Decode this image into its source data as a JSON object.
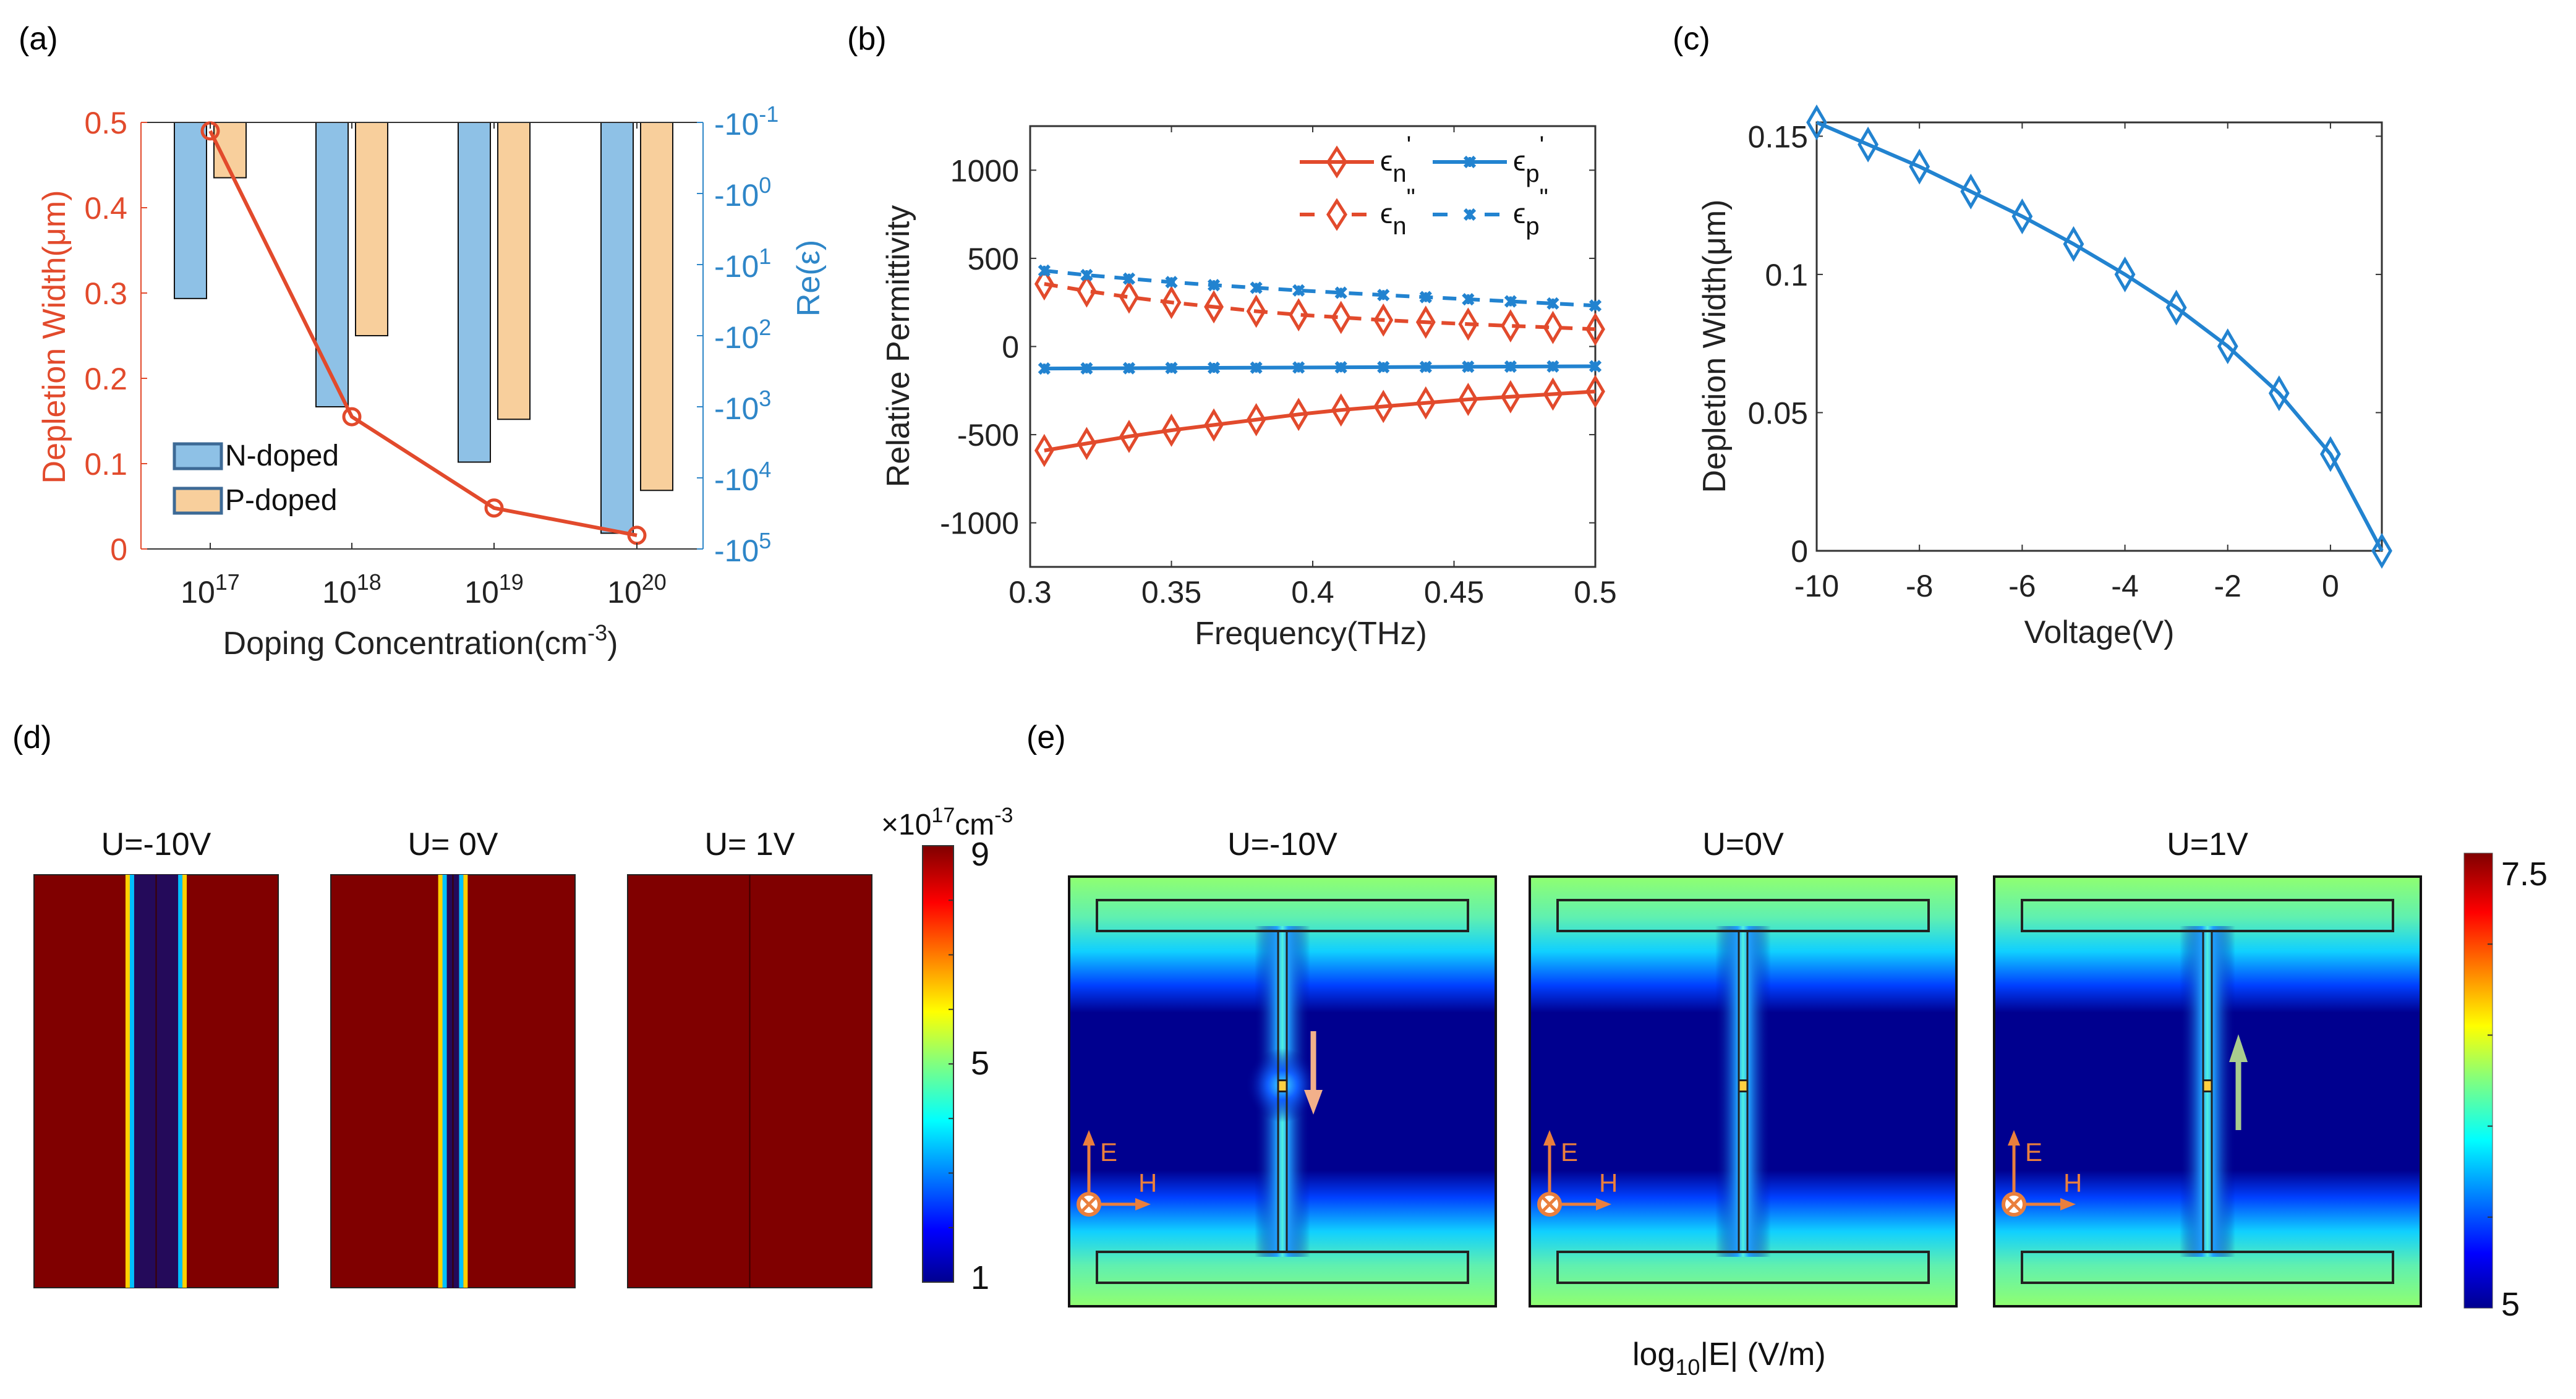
{
  "panel_labels": [
    "(a)",
    "(b)",
    "(c)",
    "(d)",
    "(e)"
  ],
  "chart_data": [
    {
      "id": "a",
      "type": "bar",
      "title": "",
      "xlabel": "Doping Concentration(cm-3)",
      "xlabel_main": "Doping Concentration(cm",
      "xlabel_sup": "-3",
      "xlabel_end": ")",
      "ylabel": "Depletion Width(μm)",
      "ylabel_right": "Re(ε)",
      "categories": [
        {
          "base": "10",
          "exp": "17"
        },
        {
          "base": "10",
          "exp": "18"
        },
        {
          "base": "10",
          "exp": "19"
        },
        {
          "base": "10",
          "exp": "20"
        }
      ],
      "ylim": [
        0,
        0.5
      ],
      "yticks": [
        "0",
        "0.1",
        "0.2",
        "0.3",
        "0.4",
        "0.5"
      ],
      "ylim_right_log10_magnitude": [
        -1,
        5
      ],
      "yticks_right": [
        {
          "base": "-10",
          "exp": "-1"
        },
        {
          "base": "-10",
          "exp": "0"
        },
        {
          "base": "-10",
          "exp": "1"
        },
        {
          "base": "-10",
          "exp": "2"
        },
        {
          "base": "-10",
          "exp": "3"
        },
        {
          "base": "-10",
          "exp": "4"
        },
        {
          "base": "-10",
          "exp": "5"
        }
      ],
      "series": [
        {
          "name": "N-doped",
          "kind": "bar",
          "axis": "right",
          "values": [
            -30,
            -1000,
            -6000,
            -60000
          ],
          "color": "#8ec1e6"
        },
        {
          "name": "P-doped",
          "kind": "bar",
          "axis": "right",
          "values": [
            -0.6,
            -100,
            -1500,
            -15000
          ],
          "color": "#f8cf9c"
        },
        {
          "name": "Depletion Width",
          "kind": "line",
          "axis": "left",
          "values": [
            0.49,
            0.155,
            0.048,
            0.016
          ],
          "color": "#e24a2c"
        }
      ],
      "legend": [
        {
          "label": "N-doped"
        },
        {
          "label": "P-doped"
        }
      ],
      "legend_position": "bottom-left",
      "left_axis_color": "#e24a2c",
      "right_axis_color": "#2e86c8"
    },
    {
      "id": "b",
      "type": "line",
      "xlabel": "Frequency(THz)",
      "ylabel": "Relative Permittivity",
      "xlim": [
        0.3,
        0.5
      ],
      "ylim": [
        -1250,
        1250
      ],
      "xticks": [
        "0.3",
        "0.35",
        "0.4",
        "0.45",
        "0.5"
      ],
      "yticks": [
        "-1000",
        "-500",
        "0",
        "500",
        "1000"
      ],
      "x": [
        0.305,
        0.32,
        0.335,
        0.35,
        0.365,
        0.38,
        0.395,
        0.41,
        0.425,
        0.44,
        0.455,
        0.47,
        0.485,
        0.5
      ],
      "series": [
        {
          "name": "ε_n'",
          "sym": "ϵ",
          "sub": "n",
          "sup": "'",
          "marker": "diamond",
          "dash": false,
          "color": "#e24a2c",
          "values": [
            -590,
            -550,
            -510,
            -475,
            -445,
            -415,
            -385,
            -360,
            -340,
            -320,
            -300,
            -285,
            -270,
            -255
          ]
        },
        {
          "name": "ε_p'",
          "sym": "ϵ",
          "sub": "p",
          "sup": "'",
          "marker": "x",
          "dash": false,
          "color": "#2283d0",
          "values": [
            -125,
            -124,
            -123,
            -122,
            -121,
            -120,
            -119,
            -118,
            -117,
            -116,
            -115,
            -114,
            -113,
            -112
          ]
        },
        {
          "name": "ε_n\"",
          "sym": "ϵ",
          "sub": "n",
          "sup": "\"",
          "marker": "diamond",
          "dash": true,
          "color": "#e24a2c",
          "values": [
            355,
            315,
            280,
            250,
            225,
            200,
            180,
            165,
            150,
            138,
            127,
            117,
            108,
            98
          ]
        },
        {
          "name": "ε_p\"",
          "sym": "ϵ",
          "sub": "p",
          "sup": "\"",
          "marker": "x",
          "dash": true,
          "color": "#2283d0",
          "values": [
            430,
            405,
            385,
            365,
            348,
            333,
            318,
            305,
            292,
            280,
            268,
            256,
            244,
            232
          ]
        }
      ],
      "legend_position": "top-right"
    },
    {
      "id": "c",
      "type": "line",
      "xlabel": "Voltage(V)",
      "ylabel": "Depletion Width(μm)",
      "xlim": [
        -10,
        1
      ],
      "ylim": [
        0,
        0.155
      ],
      "xticks": [
        "-10",
        "-8",
        "-6",
        "-4",
        "-2",
        "0"
      ],
      "yticks": [
        "0",
        "0.05",
        "0.1",
        "0.15"
      ],
      "x": [
        -10,
        -9,
        -8,
        -7,
        -6,
        -5,
        -4,
        -3,
        -2,
        -1,
        0,
        1
      ],
      "series": [
        {
          "name": "Depletion Width",
          "marker": "diamond",
          "color": "#2283d0",
          "values": [
            0.155,
            0.147,
            0.139,
            0.13,
            0.121,
            0.111,
            0.1,
            0.088,
            0.074,
            0.057,
            0.035,
            0.0
          ]
        }
      ]
    },
    {
      "id": "d",
      "type": "heatmap",
      "subplots": [
        {
          "title": "U=-10V",
          "depletion_width_fraction": 0.18
        },
        {
          "title": "U= 0V",
          "depletion_width_fraction": 0.05
        },
        {
          "title": "U= 1V",
          "depletion_width_fraction": 0.0
        }
      ],
      "colorbar": {
        "unit_prefix": "×10",
        "unit_exp": "17",
        "unit_main": "cm",
        "unit_exp2": "-3",
        "min": 1,
        "max": 9,
        "ticks": [
          "9",
          "5",
          "1"
        ]
      }
    },
    {
      "id": "e",
      "type": "heatmap",
      "subplots": [
        {
          "title": "U=-10V",
          "arrow": "down",
          "arrow_color": "#f2b08a"
        },
        {
          "title": "U=0V",
          "arrow": "none"
        },
        {
          "title": "U=1V",
          "arrow": "up",
          "arrow_color": "#a9cc8e"
        }
      ],
      "axes_labels": {
        "e": "E",
        "h": "H"
      },
      "colorbar": {
        "min": 5,
        "max": 7.5,
        "ticks": [
          "7.5",
          "5"
        ]
      },
      "caption_main": "log",
      "caption_sub": "10",
      "caption_end": "|E| (V/m)"
    }
  ]
}
